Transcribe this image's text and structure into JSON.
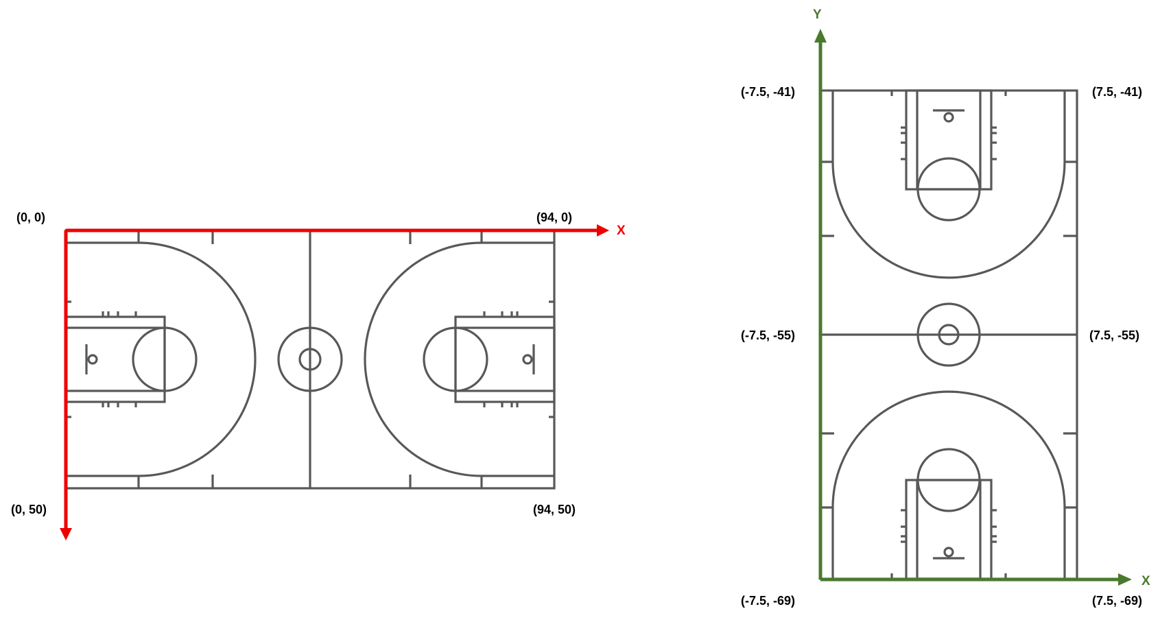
{
  "left_diagram": {
    "axis_color": "#ee0000",
    "x_axis_label": "X",
    "corner_labels": {
      "top_left": "(0, 0)",
      "top_right": "(94, 0)",
      "bottom_left": "(0, 50)",
      "bottom_right": "(94, 50)"
    }
  },
  "right_diagram": {
    "axis_color": "#4a7a2e",
    "x_axis_label": "X",
    "y_axis_label": "Y",
    "corner_labels": {
      "top_left": "(-7.5, -41)",
      "top_right": "(7.5, -41)",
      "mid_left": "(-7.5, -55)",
      "mid_right": "(7.5, -55)",
      "bottom_left": "(-7.5, -69)",
      "bottom_right": "(7.5, -69)"
    }
  },
  "court_line_color": "#585858"
}
